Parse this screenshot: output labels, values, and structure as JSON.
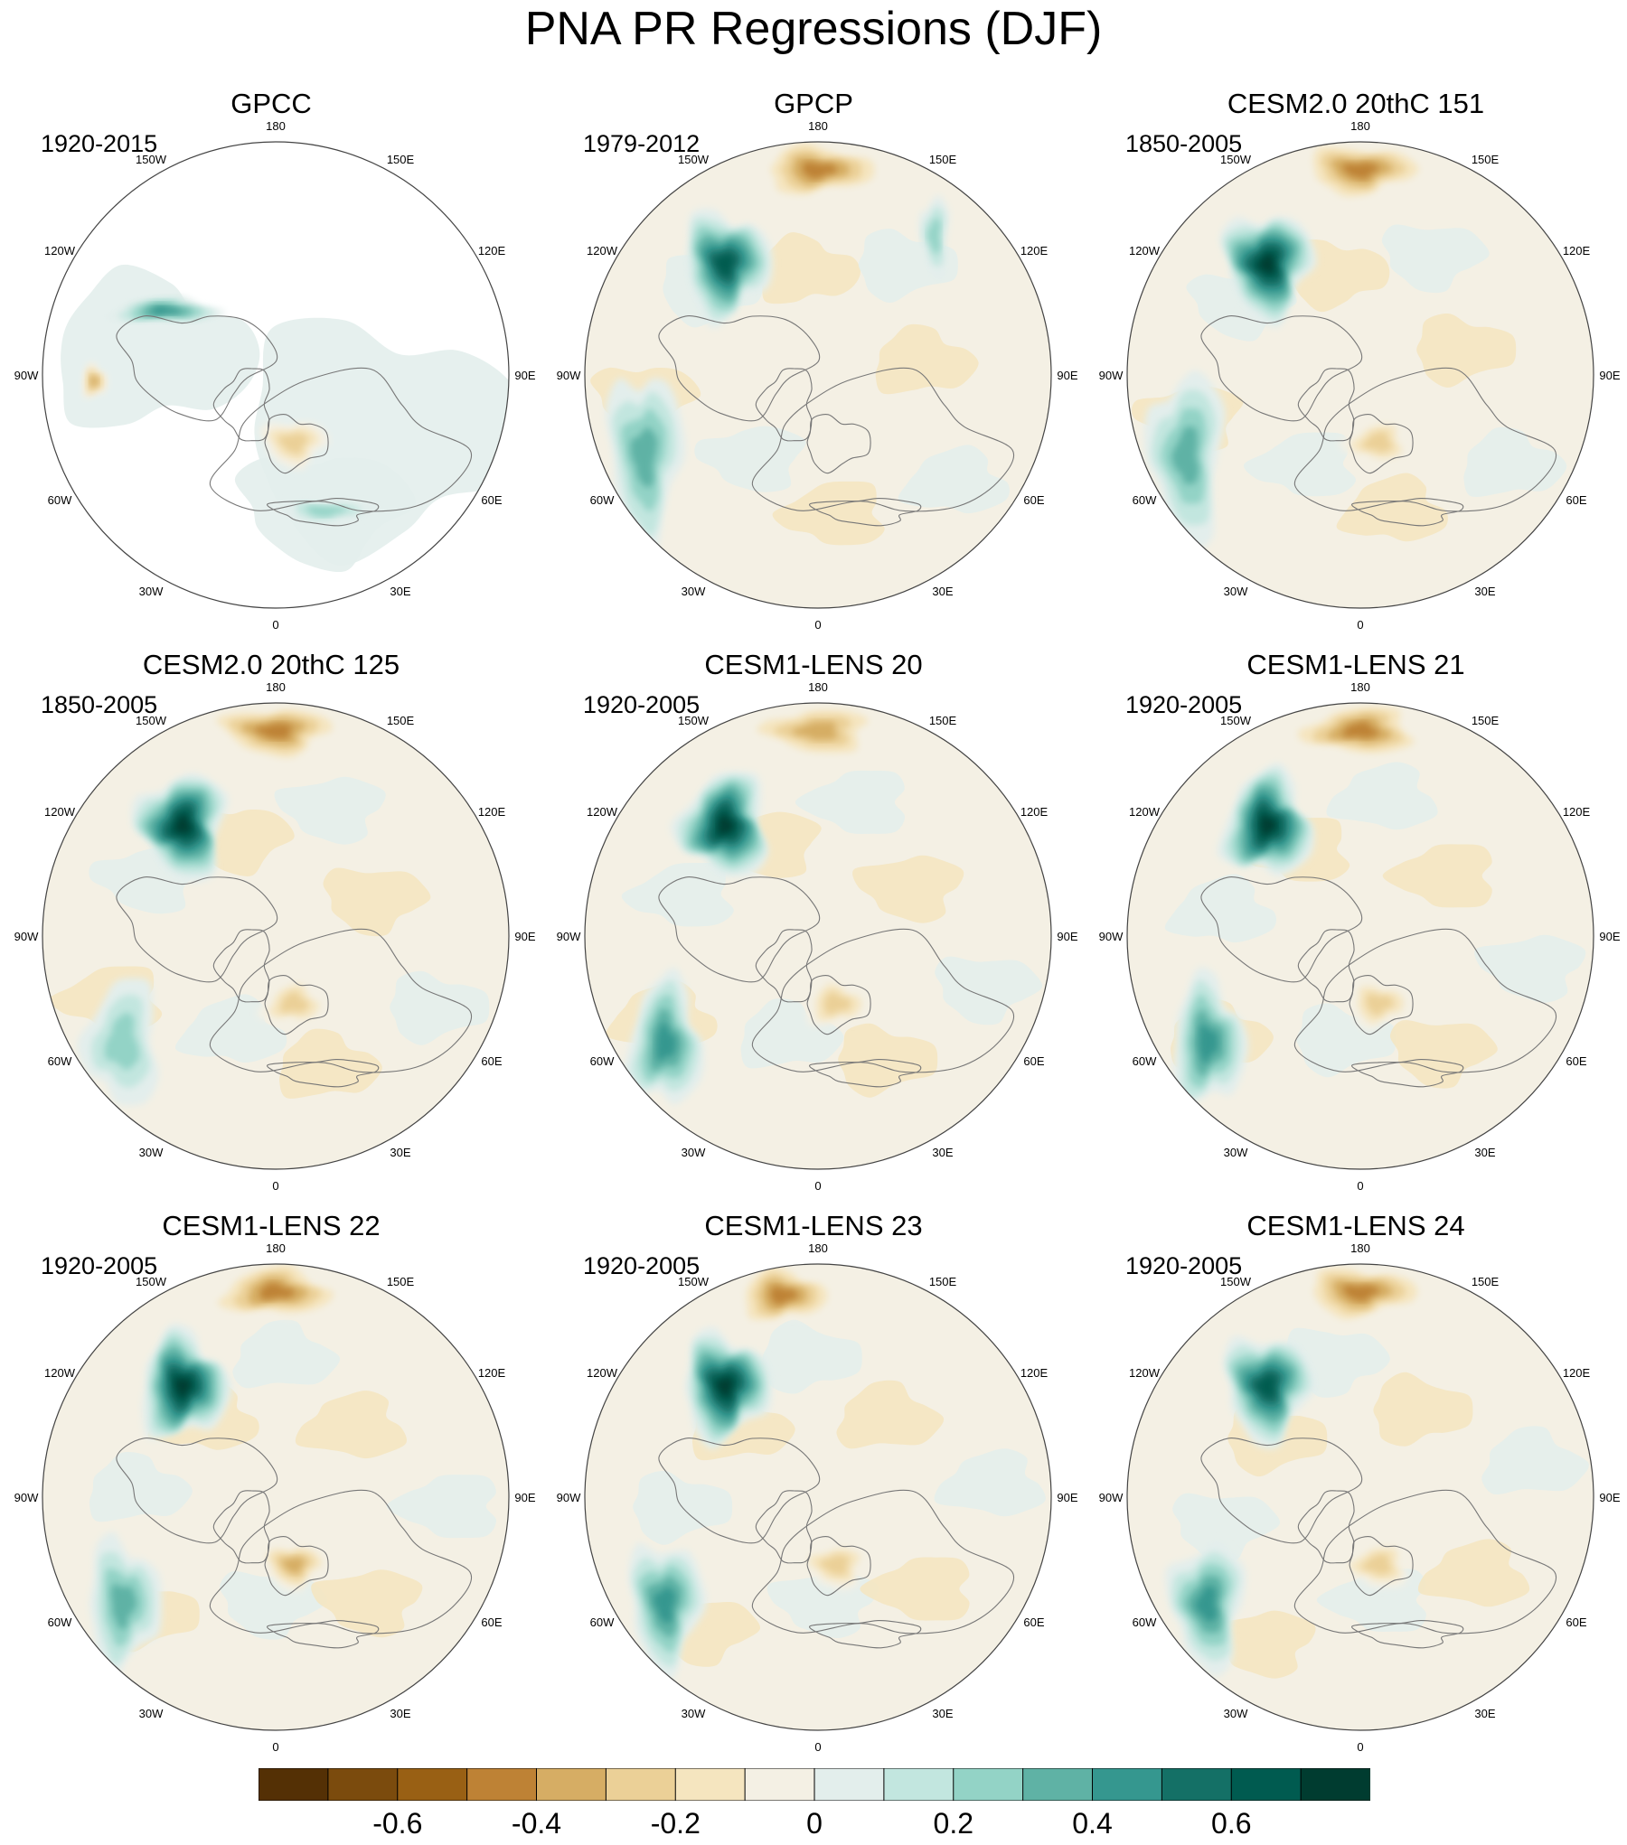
{
  "figure": {
    "title": "PNA PR Regressions (DJF)"
  },
  "chart_data": {
    "type": "heatmap",
    "projection": "north polar stereographic",
    "variable": "PR",
    "season": "DJF",
    "panels": [
      {
        "title": "GPCC",
        "period": "1920-2015",
        "land_only": true,
        "features": [
          {
            "region": "150W-120W N. Pacific coast",
            "sign": "positive",
            "magnitude": 0.5
          },
          {
            "region": "90W S.E. United States",
            "sign": "negative",
            "magnitude": -0.4
          },
          {
            "region": "Mediterranean",
            "sign": "positive",
            "magnitude": 0.3
          },
          {
            "region": "Scandinavia",
            "sign": "negative",
            "magnitude": -0.3
          }
        ]
      },
      {
        "title": "GPCP",
        "period": "1979-2012",
        "features": [
          {
            "region": "N. Pacific (180)",
            "sign": "negative",
            "magnitude": -0.5
          },
          {
            "region": "N.E. Pacific (130W)",
            "sign": "positive",
            "magnitude": 0.7
          },
          {
            "region": "Subtropical Atlantic (60W-90W)",
            "sign": "positive",
            "magnitude": 0.4
          },
          {
            "region": "N. Pacific 150E band",
            "sign": "positive",
            "magnitude": 0.3
          }
        ]
      },
      {
        "title": "CESM2.0 20thC 151",
        "period": "1850-2005",
        "features": [
          {
            "region": "N. Pacific (180)",
            "sign": "negative",
            "magnitude": -0.5
          },
          {
            "region": "N.E. Pacific (130W)",
            "sign": "positive",
            "magnitude": 0.8
          },
          {
            "region": "Subtropical Atlantic (60W-90W)",
            "sign": "positive",
            "magnitude": 0.4
          },
          {
            "region": "Scandinavia",
            "sign": "negative",
            "magnitude": -0.3
          }
        ]
      },
      {
        "title": "CESM2.0 20thC 125",
        "period": "1850-2005",
        "features": [
          {
            "region": "N. Pacific (180)",
            "sign": "negative",
            "magnitude": -0.5
          },
          {
            "region": "N.E. Pacific (130W)",
            "sign": "positive",
            "magnitude": 0.8
          },
          {
            "region": "Subtropical Atlantic (60W)",
            "sign": "positive",
            "magnitude": 0.3
          },
          {
            "region": "Scandinavia",
            "sign": "negative",
            "magnitude": -0.3
          }
        ]
      },
      {
        "title": "CESM1-LENS 20",
        "period": "1920-2005",
        "features": [
          {
            "region": "N. Pacific (180)",
            "sign": "negative",
            "magnitude": -0.4
          },
          {
            "region": "N.E. Pacific (130W)",
            "sign": "positive",
            "magnitude": 0.8
          },
          {
            "region": "Subtropical Atlantic (60W)",
            "sign": "positive",
            "magnitude": 0.5
          },
          {
            "region": "Scandinavia",
            "sign": "negative",
            "magnitude": -0.3
          }
        ]
      },
      {
        "title": "CESM1-LENS 21",
        "period": "1920-2005",
        "features": [
          {
            "region": "N. Pacific (180)",
            "sign": "negative",
            "magnitude": -0.5
          },
          {
            "region": "N.E. Pacific (130W)",
            "sign": "positive",
            "magnitude": 0.8
          },
          {
            "region": "Subtropical Atlantic (60W)",
            "sign": "positive",
            "magnitude": 0.5
          },
          {
            "region": "Scandinavia",
            "sign": "negative",
            "magnitude": -0.3
          }
        ]
      },
      {
        "title": "CESM1-LENS 22",
        "period": "1920-2005",
        "features": [
          {
            "region": "N. Pacific (180)",
            "sign": "negative",
            "magnitude": -0.5
          },
          {
            "region": "N.E. Pacific (130W)",
            "sign": "positive",
            "magnitude": 0.8
          },
          {
            "region": "Subtropical Atlantic (60W)",
            "sign": "positive",
            "magnitude": 0.4
          },
          {
            "region": "Scandinavia",
            "sign": "negative",
            "magnitude": -0.4
          }
        ]
      },
      {
        "title": "CESM1-LENS 23",
        "period": "1920-2005",
        "features": [
          {
            "region": "N. Pacific (170W)",
            "sign": "negative",
            "magnitude": -0.5
          },
          {
            "region": "N.E. Pacific (130W)",
            "sign": "positive",
            "magnitude": 0.8
          },
          {
            "region": "Subtropical Atlantic (60W)",
            "sign": "positive",
            "magnitude": 0.5
          },
          {
            "region": "Scandinavia",
            "sign": "negative",
            "magnitude": -0.3
          }
        ]
      },
      {
        "title": "CESM1-LENS 24",
        "period": "1920-2005",
        "features": [
          {
            "region": "N. Pacific (180)",
            "sign": "negative",
            "magnitude": -0.5
          },
          {
            "region": "N.E. Pacific (130W)",
            "sign": "positive",
            "magnitude": 0.7
          },
          {
            "region": "Subtropical Atlantic (60W)",
            "sign": "positive",
            "magnitude": 0.5
          },
          {
            "region": "Scandinavia",
            "sign": "negative",
            "magnitude": -0.3
          }
        ]
      }
    ],
    "longitude_labels": [
      "180",
      "150E",
      "120E",
      "90E",
      "60E",
      "30E",
      "0",
      "30W",
      "60W",
      "90W",
      "120W",
      "150W"
    ],
    "colorbar": {
      "levels": [
        -0.7,
        -0.6,
        -0.5,
        -0.4,
        -0.3,
        -0.2,
        -0.1,
        0,
        0.1,
        0.2,
        0.3,
        0.4,
        0.5,
        0.6,
        0.7
      ],
      "colors": [
        "#543005",
        "#7b4b0d",
        "#996014",
        "#be8235",
        "#d6ad64",
        "#ebd097",
        "#f5e5bf",
        "#f4f0e4",
        "#e3eeec",
        "#c2e6df",
        "#93d3c6",
        "#5fb2a5",
        "#35978f",
        "#147066",
        "#005b50",
        "#003c30"
      ],
      "tick_labels": [
        "-0.6",
        "-0.4",
        "-0.2",
        "0",
        "0.2",
        "0.4",
        "0.6"
      ],
      "tick_values": [
        -0.6,
        -0.4,
        -0.2,
        0,
        0.2,
        0.4,
        0.6
      ]
    }
  }
}
